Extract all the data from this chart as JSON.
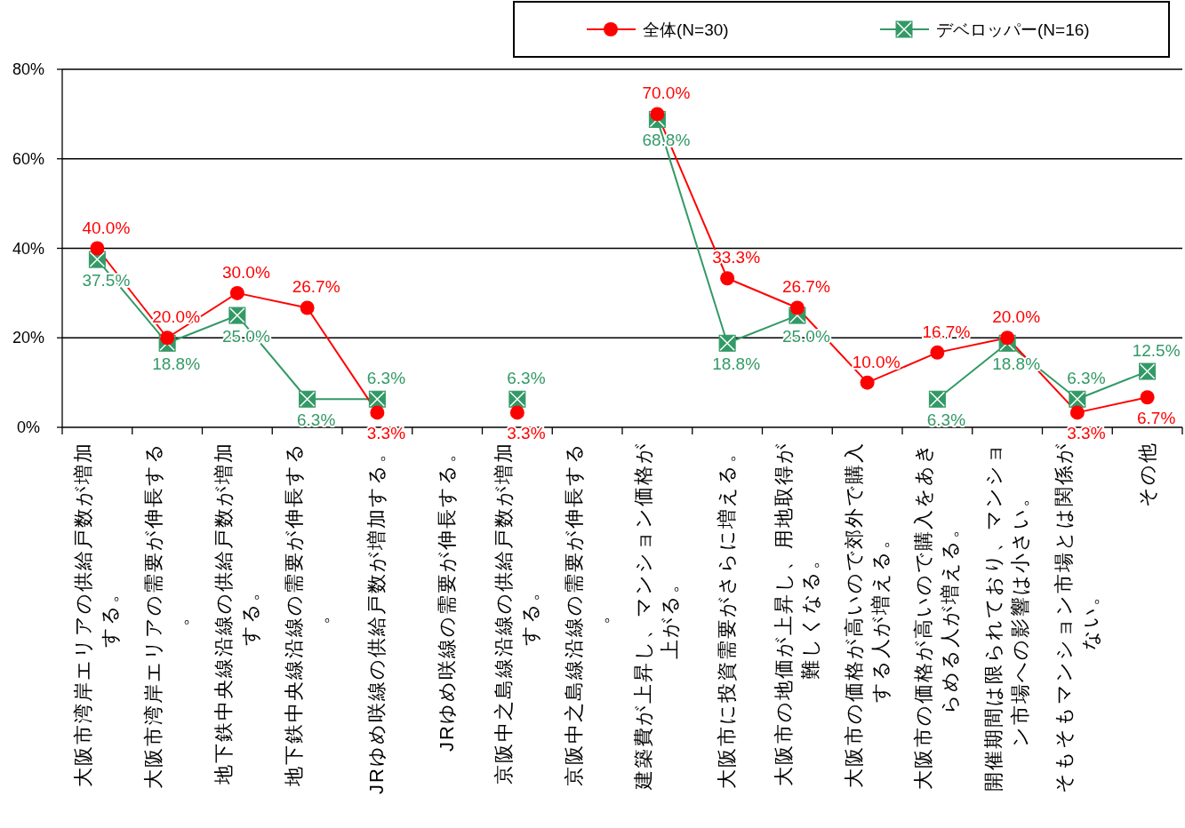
{
  "chart_data": {
    "type": "line",
    "categories": [
      "大阪市湾岸エリアの供給戸数が増加する。",
      "大阪市湾岸エリアの需要が伸長する。",
      "地下鉄中央線沿線の供給戸数が増加する。",
      "地下鉄中央線沿線の需要が伸長する。",
      "JRゆめ咲線の供給戸数が増加する。",
      "JRゆめ咲線の需要が伸長する。",
      "京阪中之島線沿線の供給戸数が増加する。",
      "京阪中之島線沿線の需要が伸長する。",
      "建築費が上昇し、マンション価格が上がる。",
      "大阪市に投資需要がさらに増える。",
      "大阪市の地価が上昇し、用地取得が難しくなる。",
      "大阪市の価格が高いので郊外で購入する人が増える。",
      "大阪市の価格が高いので購入をあきらめる人が増える。",
      "開催期間は限られており、マンション市場への影響は小さい。",
      "そもそもマンション市場とは関係がない。",
      "その他"
    ],
    "series": [
      {
        "name": "全体(N=30)",
        "color": "#ff0000",
        "marker": "circle",
        "values": [
          40.0,
          20.0,
          30.0,
          26.7,
          3.3,
          null,
          3.3,
          null,
          70.0,
          33.3,
          26.7,
          10.0,
          16.7,
          20.0,
          3.3,
          6.7
        ],
        "value_labels": [
          "40.0%",
          "20.0%",
          "30.0%",
          "26.7%",
          "3.3%",
          null,
          "3.3%",
          null,
          "70.0%",
          "33.3%",
          "26.7%",
          "10.0%",
          "16.7%",
          "20.0%",
          "3.3%",
          "6.7%"
        ]
      },
      {
        "name": "デベロッパー(N=16)",
        "color": "#339966",
        "marker": "square",
        "values": [
          37.5,
          18.8,
          25.0,
          6.3,
          6.3,
          null,
          6.3,
          null,
          68.8,
          18.8,
          25.0,
          null,
          6.3,
          18.8,
          6.3,
          12.5
        ],
        "value_labels": [
          "37.5%",
          "18.8%",
          "25.0%",
          "6.3%",
          "6.3%",
          null,
          "6.3%",
          null,
          "68.8%",
          "18.8%",
          "25.0%",
          null,
          "6.3%",
          "18.8%",
          "6.3%",
          "12.5%"
        ]
      }
    ],
    "ylim": [
      0,
      80
    ],
    "yticks": [
      {
        "value": 0,
        "label": "0%"
      },
      {
        "value": 20,
        "label": "20%"
      },
      {
        "value": 40,
        "label": "40%"
      },
      {
        "value": 60,
        "label": "60%"
      },
      {
        "value": 80,
        "label": "80%"
      }
    ],
    "grid": "y",
    "legend": "top right"
  }
}
